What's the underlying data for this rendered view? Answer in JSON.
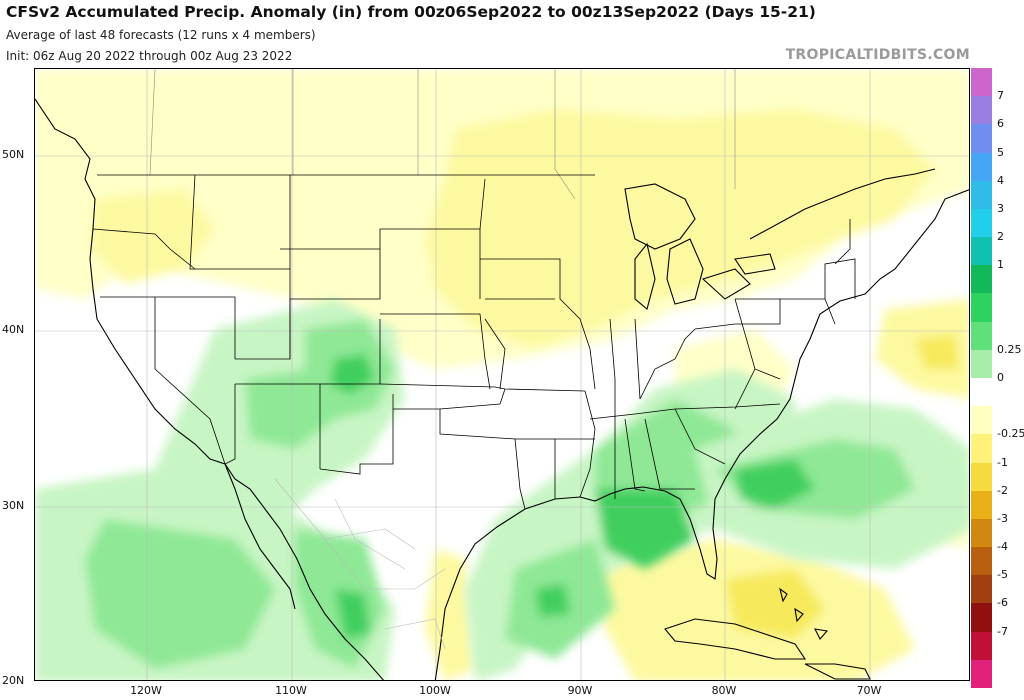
{
  "header": {
    "title": "CFSv2 Accumulated Precip. Anomaly (in) from 00z06Sep2022 to 00z13Sep2022 (Days 15-21)",
    "subtitle": "Average of last 48 forecasts (12 runs x 4 members)",
    "init": "Init: 06z Aug 20 2022 through 00z Aug 23 2022",
    "credit": "TROPICALTIDBITS.COM"
  },
  "axes": {
    "lat_labels": [
      "50N",
      "40N",
      "30N",
      "20N"
    ],
    "lon_labels": [
      "120W",
      "110W",
      "100W",
      "90W",
      "80W",
      "70W"
    ]
  },
  "colorbar": {
    "labels": [
      "7",
      "6",
      "5",
      "4",
      "3",
      "2",
      "1",
      "0.25",
      "0",
      "-0.25",
      "-1",
      "-2",
      "-3",
      "-4",
      "-5",
      "-6",
      "-7"
    ],
    "colors": [
      "#cc66cc",
      "#9a7fe0",
      "#6f8ff0",
      "#44a6f4",
      "#2fbde8",
      "#22cfe8",
      "#10c0b0",
      "#12b85a",
      "#2ed35f",
      "#5fe07a",
      "#a6eeaa",
      "#ffffff",
      "#ffffc0",
      "#fff27a",
      "#f5da40",
      "#e9b018",
      "#d08810",
      "#b86010",
      "#a04010",
      "#901010",
      "#c0103a",
      "#e0207a"
    ]
  },
  "map": {
    "fill_colors": {
      "light_yellow": "#ffffc8",
      "yellow": "#fdf9a0",
      "deep_yellow": "#f6ea5c",
      "light_green": "#c8f5c4",
      "green": "#8ee895",
      "deep_green": "#3fcf5e"
    }
  }
}
